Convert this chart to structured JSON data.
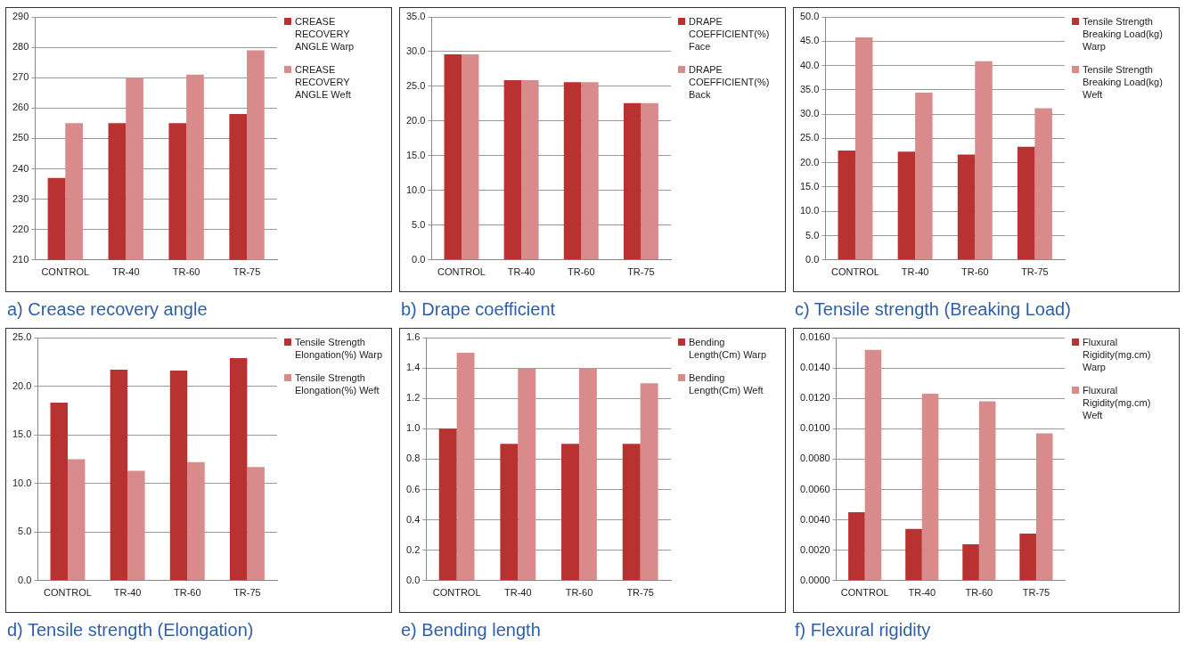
{
  "chart_data": [
    {
      "type": "bar",
      "categories": [
        "CONTROL",
        "TR-40",
        "TR-60",
        "TR-75"
      ],
      "series": [
        {
          "name": "CREASE RECOVERY ANGLE Warp",
          "color": "#b83232",
          "values": [
            237,
            255,
            255,
            258
          ]
        },
        {
          "name": "CREASE RECOVERY ANGLE Weft",
          "color": "#d98a8a",
          "values": [
            255,
            270,
            271,
            279
          ]
        }
      ],
      "ylim": [
        210,
        290
      ],
      "yticks": [
        210,
        220,
        230,
        240,
        250,
        260,
        270,
        280,
        290
      ],
      "grid": "y",
      "legend": "right",
      "annotations": [
        "a) Crease recovery angle"
      ]
    },
    {
      "type": "bar",
      "categories": [
        "CONTROL",
        "TR-40",
        "TR-60",
        "TR-75"
      ],
      "series": [
        {
          "name": "DRAPE COEFFICIENT(%) Face",
          "color": "#b83232",
          "values": [
            29.6,
            25.9,
            25.6,
            22.6
          ]
        },
        {
          "name": "DRAPE COEFFICIENT(%) Back",
          "color": "#d98a8a",
          "values": [
            29.6,
            25.9,
            25.6,
            22.6
          ]
        }
      ],
      "ylim": [
        0,
        35
      ],
      "yticks": [
        {
          "value": 0,
          "label": "0.0"
        },
        {
          "value": 5,
          "label": "5.0"
        },
        {
          "value": 10,
          "label": "10.0"
        },
        {
          "value": 15,
          "label": "15.0"
        },
        {
          "value": 20,
          "label": "20.0"
        },
        {
          "value": 25,
          "label": "25.0"
        },
        {
          "value": 30,
          "label": "30.0"
        },
        {
          "value": 35,
          "label": "35.0"
        }
      ],
      "grid": "y",
      "legend": "right",
      "annotations": [
        "b) Drape coefficient"
      ]
    },
    {
      "type": "bar",
      "categories": [
        "CONTROL",
        "TR-40",
        "TR-60",
        "TR-75"
      ],
      "series": [
        {
          "name": "Tensile Strength Breaking Load(kg) Warp",
          "color": "#b83232",
          "values": [
            22.5,
            22.3,
            21.7,
            23.3
          ]
        },
        {
          "name": "Tensile Strength Breaking Load(kg) Weft",
          "color": "#d98a8a",
          "values": [
            45.8,
            34.4,
            40.9,
            31.2
          ]
        }
      ],
      "ylim": [
        0,
        50
      ],
      "yticks": [
        {
          "value": 0,
          "label": "0.0"
        },
        {
          "value": 5,
          "label": "5.0"
        },
        {
          "value": 10,
          "label": "10.0"
        },
        {
          "value": 15,
          "label": "15.0"
        },
        {
          "value": 20,
          "label": "20.0"
        },
        {
          "value": 25,
          "label": "25.0"
        },
        {
          "value": 30,
          "label": "30.0"
        },
        {
          "value": 35,
          "label": "35.0"
        },
        {
          "value": 40,
          "label": "40.0"
        },
        {
          "value": 45,
          "label": "45.0"
        },
        {
          "value": 50,
          "label": "50.0"
        }
      ],
      "grid": "y",
      "legend": "right",
      "annotations": [
        "c) Tensile strength (Breaking Load)"
      ]
    },
    {
      "type": "bar",
      "categories": [
        "CONTROL",
        "TR-40",
        "TR-60",
        "TR-75"
      ],
      "series": [
        {
          "name": "Tensile Strength Elongation(%) Warp",
          "color": "#b83232",
          "values": [
            18.3,
            21.7,
            21.6,
            22.9
          ]
        },
        {
          "name": "Tensile Strength Elongation(%) Weft",
          "color": "#d98a8a",
          "values": [
            12.5,
            11.3,
            12.2,
            11.7
          ]
        }
      ],
      "ylim": [
        0,
        25
      ],
      "yticks": [
        {
          "value": 0,
          "label": "0.0"
        },
        {
          "value": 5,
          "label": "5.0"
        },
        {
          "value": 10,
          "label": "10.0"
        },
        {
          "value": 15,
          "label": "15.0"
        },
        {
          "value": 20,
          "label": "20.0"
        },
        {
          "value": 25,
          "label": "25.0"
        }
      ],
      "grid": "y",
      "legend": "right",
      "annotations": [
        "d) Tensile strength (Elongation)"
      ]
    },
    {
      "type": "bar",
      "categories": [
        "CONTROL",
        "TR-40",
        "TR-60",
        "TR-75"
      ],
      "series": [
        {
          "name": "Bending Length(Cm) Warp",
          "color": "#b83232",
          "values": [
            1.0,
            0.9,
            0.9,
            0.9
          ]
        },
        {
          "name": "Bending Length(Cm) Weft",
          "color": "#d98a8a",
          "values": [
            1.5,
            1.4,
            1.4,
            1.3
          ]
        }
      ],
      "ylim": [
        0,
        1.6
      ],
      "yticks": [
        {
          "value": 0,
          "label": "0.0"
        },
        {
          "value": 0.2,
          "label": "0.2"
        },
        {
          "value": 0.4,
          "label": "0.4"
        },
        {
          "value": 0.6,
          "label": "0.6"
        },
        {
          "value": 0.8,
          "label": "0.8"
        },
        {
          "value": 1,
          "label": "1.0"
        },
        {
          "value": 1.2,
          "label": "1.2"
        },
        {
          "value": 1.4,
          "label": "1.4"
        },
        {
          "value": 1.6,
          "label": "1.6"
        }
      ],
      "grid": "y",
      "legend": "right",
      "annotations": [
        "e) Bending length"
      ]
    },
    {
      "type": "bar",
      "categories": [
        "CONTROL",
        "TR-40",
        "TR-60",
        "TR-75"
      ],
      "series": [
        {
          "name": "Fluxural Rigidity(mg.cm) Warp",
          "color": "#b83232",
          "values": [
            0.0045,
            0.0034,
            0.0024,
            0.0031
          ]
        },
        {
          "name": "Fluxural Rigidity(mg.cm) Weft",
          "color": "#d98a8a",
          "values": [
            0.0152,
            0.0123,
            0.0118,
            0.0097
          ]
        }
      ],
      "ylim": [
        0,
        0.016
      ],
      "yticks": [
        {
          "value": 0,
          "label": "0.0000"
        },
        {
          "value": 0.002,
          "label": "0.0020"
        },
        {
          "value": 0.004,
          "label": "0.0040"
        },
        {
          "value": 0.006,
          "label": "0.0060"
        },
        {
          "value": 0.008,
          "label": "0.0080"
        },
        {
          "value": 0.01,
          "label": "0.0100"
        },
        {
          "value": 0.012,
          "label": "0.0120"
        },
        {
          "value": 0.014,
          "label": "0.0140"
        },
        {
          "value": 0.016,
          "label": "0.0160"
        }
      ],
      "grid": "y",
      "legend": "right",
      "annotations": [
        "f) Flexural rigidity"
      ]
    }
  ]
}
